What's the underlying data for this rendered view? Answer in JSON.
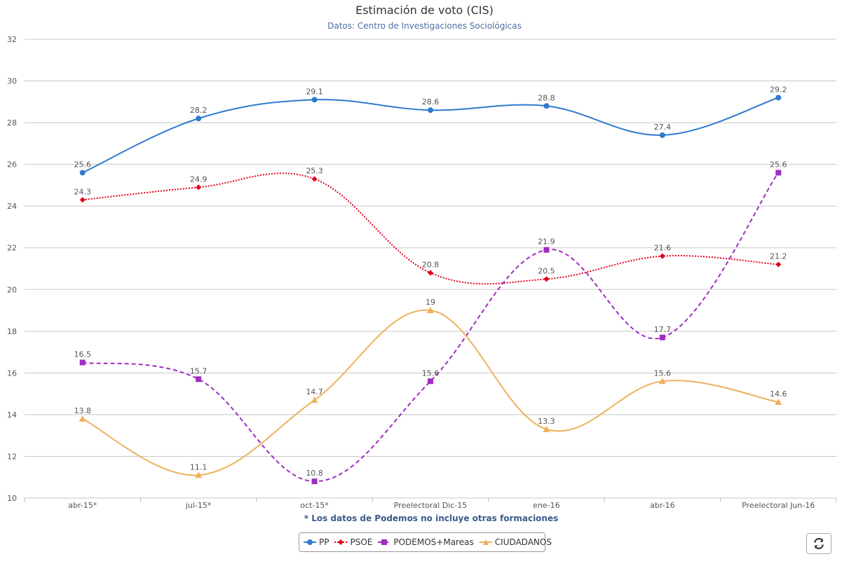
{
  "colors": {
    "pp": "#2e7bcf",
    "psoe": "#e3001b",
    "podemos": "#a02cc2",
    "cs": "#eeb15d",
    "grid": "#c8c8c8"
  },
  "chart_data": {
    "type": "line",
    "title": "Estimación de voto (CIS)",
    "subtitle": "Datos: Centro de Investigaciones Sociológicas",
    "footnote": "* Los datos de Podemos no incluye otras formaciones",
    "categories": [
      "abr-15*",
      "jul-15*",
      "oct-15*",
      "Preelectoral Dic-15",
      "ene-16",
      "abr-16",
      "Preelectoral Jun-16"
    ],
    "ylim": [
      10,
      32
    ],
    "yticks": [
      10,
      12,
      14,
      16,
      18,
      20,
      22,
      24,
      26,
      28,
      30,
      32
    ],
    "grid": true,
    "legend_position": "bottom-center",
    "series": [
      {
        "name": "PP",
        "color": "#2e7bcf",
        "dash": "solid",
        "marker": "circle",
        "values": [
          25.6,
          28.2,
          29.1,
          28.6,
          28.8,
          27.4,
          29.2
        ]
      },
      {
        "name": "PSOE",
        "color": "#e3001b",
        "dash": "dotted",
        "marker": "diamond",
        "values": [
          24.3,
          24.9,
          25.3,
          20.8,
          20.5,
          21.6,
          21.2
        ]
      },
      {
        "name": "PODEMOS+Mareas",
        "color": "#a02cc2",
        "dash": "dashed",
        "marker": "square",
        "values": [
          16.5,
          15.7,
          10.8,
          15.6,
          21.9,
          17.7,
          25.6
        ]
      },
      {
        "name": "CIUDADANOS",
        "color": "#eeb15d",
        "dash": "solid",
        "marker": "triangle",
        "values": [
          13.8,
          11.1,
          14.7,
          19,
          13.3,
          15.6,
          14.6
        ]
      }
    ]
  },
  "refresh_icon": "refresh-icon"
}
